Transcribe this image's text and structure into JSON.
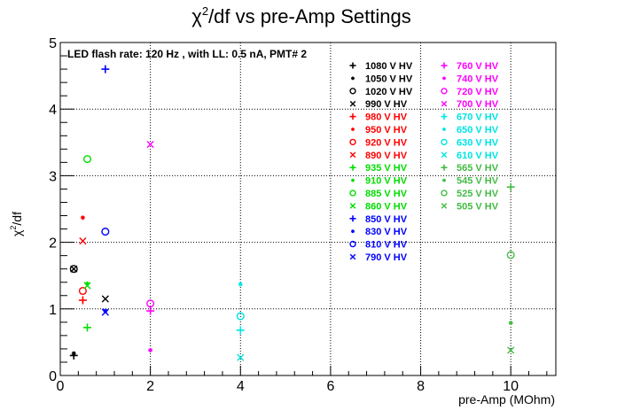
{
  "chart_data": {
    "type": "scatter",
    "title_main": "χ",
    "title_sup": "2",
    "title_rest": "/df vs pre-Amp Settings",
    "subtitle": "LED flash rate: 120 Hz , with LL: 0.5 nA, PMT# 2",
    "xlabel": "pre-Amp (MOhm)",
    "ylabel_main": "χ",
    "ylabel_sup": "2",
    "ylabel_rest": "/df",
    "xlim": [
      0,
      11
    ],
    "ylim": [
      0,
      5
    ],
    "x_ticks": [
      "0",
      "2",
      "4",
      "6",
      "8",
      "10"
    ],
    "y_ticks": [
      "0",
      "1",
      "2",
      "3",
      "4",
      "5"
    ],
    "grid": true,
    "legend_columns": 2,
    "series": [
      {
        "name": "1080 V HV",
        "color": "#000000",
        "marker": "plus",
        "points": [
          [
            0.3,
            0.3
          ]
        ]
      },
      {
        "name": "1050 V HV",
        "color": "#000000",
        "marker": "star",
        "points": [
          [
            0.3,
            0.33
          ]
        ]
      },
      {
        "name": "1020 V HV",
        "color": "#000000",
        "marker": "circle",
        "points": [
          [
            0.3,
            1.6
          ]
        ]
      },
      {
        "name": "990 V HV",
        "color": "#000000",
        "marker": "cross",
        "points": [
          [
            0.3,
            1.6
          ],
          [
            1.0,
            1.15
          ]
        ]
      },
      {
        "name": "980 V HV",
        "color": "#ff0000",
        "marker": "plus",
        "points": [
          [
            0.5,
            1.13
          ]
        ]
      },
      {
        "name": "950 V HV",
        "color": "#ff0000",
        "marker": "star",
        "points": [
          [
            0.5,
            2.37
          ]
        ]
      },
      {
        "name": "920 V HV",
        "color": "#ff0000",
        "marker": "circle",
        "points": [
          [
            0.5,
            1.27
          ]
        ]
      },
      {
        "name": "890 V HV",
        "color": "#ff0000",
        "marker": "cross",
        "points": [
          [
            0.5,
            2.02
          ]
        ]
      },
      {
        "name": "935 V HV",
        "color": "#00dd00",
        "marker": "plus",
        "points": [
          [
            0.6,
            0.72
          ]
        ]
      },
      {
        "name": "910 V HV",
        "color": "#00dd00",
        "marker": "star",
        "points": [
          [
            0.6,
            1.38
          ]
        ]
      },
      {
        "name": "885 V HV",
        "color": "#00dd00",
        "marker": "circle",
        "points": [
          [
            0.6,
            3.25
          ]
        ]
      },
      {
        "name": "860 V HV",
        "color": "#00dd00",
        "marker": "cross",
        "points": [
          [
            0.6,
            1.35
          ]
        ]
      },
      {
        "name": "850 V HV",
        "color": "#0000ff",
        "marker": "plus",
        "points": [
          [
            1.0,
            4.6
          ]
        ]
      },
      {
        "name": "830 V HV",
        "color": "#0000ff",
        "marker": "star",
        "points": [
          [
            1.0,
            0.97
          ]
        ]
      },
      {
        "name": "810 V HV",
        "color": "#0000ff",
        "marker": "circle",
        "points": [
          [
            1.0,
            2.16
          ]
        ]
      },
      {
        "name": "790 V HV",
        "color": "#0000ff",
        "marker": "cross",
        "points": [
          [
            1.0,
            0.95
          ]
        ]
      },
      {
        "name": "760 V HV",
        "color": "#ff00ff",
        "marker": "plus",
        "points": [
          [
            2.0,
            0.97
          ]
        ]
      },
      {
        "name": "740 V HV",
        "color": "#ff00ff",
        "marker": "star",
        "points": [
          [
            2.0,
            0.38
          ]
        ]
      },
      {
        "name": "720 V HV",
        "color": "#ff00ff",
        "marker": "circle",
        "points": [
          [
            2.0,
            1.08
          ]
        ]
      },
      {
        "name": "700 V HV",
        "color": "#ff00ff",
        "marker": "cross",
        "points": [
          [
            2.0,
            3.47
          ]
        ]
      },
      {
        "name": "670 V HV",
        "color": "#00e5e5",
        "marker": "plus",
        "points": [
          [
            4.0,
            0.68
          ]
        ]
      },
      {
        "name": "650 V HV",
        "color": "#00e5e5",
        "marker": "star",
        "points": [
          [
            4.0,
            1.37
          ]
        ]
      },
      {
        "name": "630 V HV",
        "color": "#00e5e5",
        "marker": "circle",
        "points": [
          [
            4.0,
            0.89
          ]
        ]
      },
      {
        "name": "610 V HV",
        "color": "#00e5e5",
        "marker": "cross",
        "points": [
          [
            4.0,
            0.27
          ]
        ]
      },
      {
        "name": "565 V HV",
        "color": "#44bb44",
        "marker": "plus",
        "points": [
          [
            10.0,
            2.83
          ]
        ]
      },
      {
        "name": "545 V HV",
        "color": "#44bb44",
        "marker": "star",
        "points": [
          [
            10.0,
            0.79
          ]
        ]
      },
      {
        "name": "525 V HV",
        "color": "#44bb44",
        "marker": "circle",
        "points": [
          [
            10.0,
            1.81
          ]
        ]
      },
      {
        "name": "505 V HV",
        "color": "#44bb44",
        "marker": "cross",
        "points": [
          [
            10.0,
            0.38
          ]
        ]
      }
    ]
  }
}
